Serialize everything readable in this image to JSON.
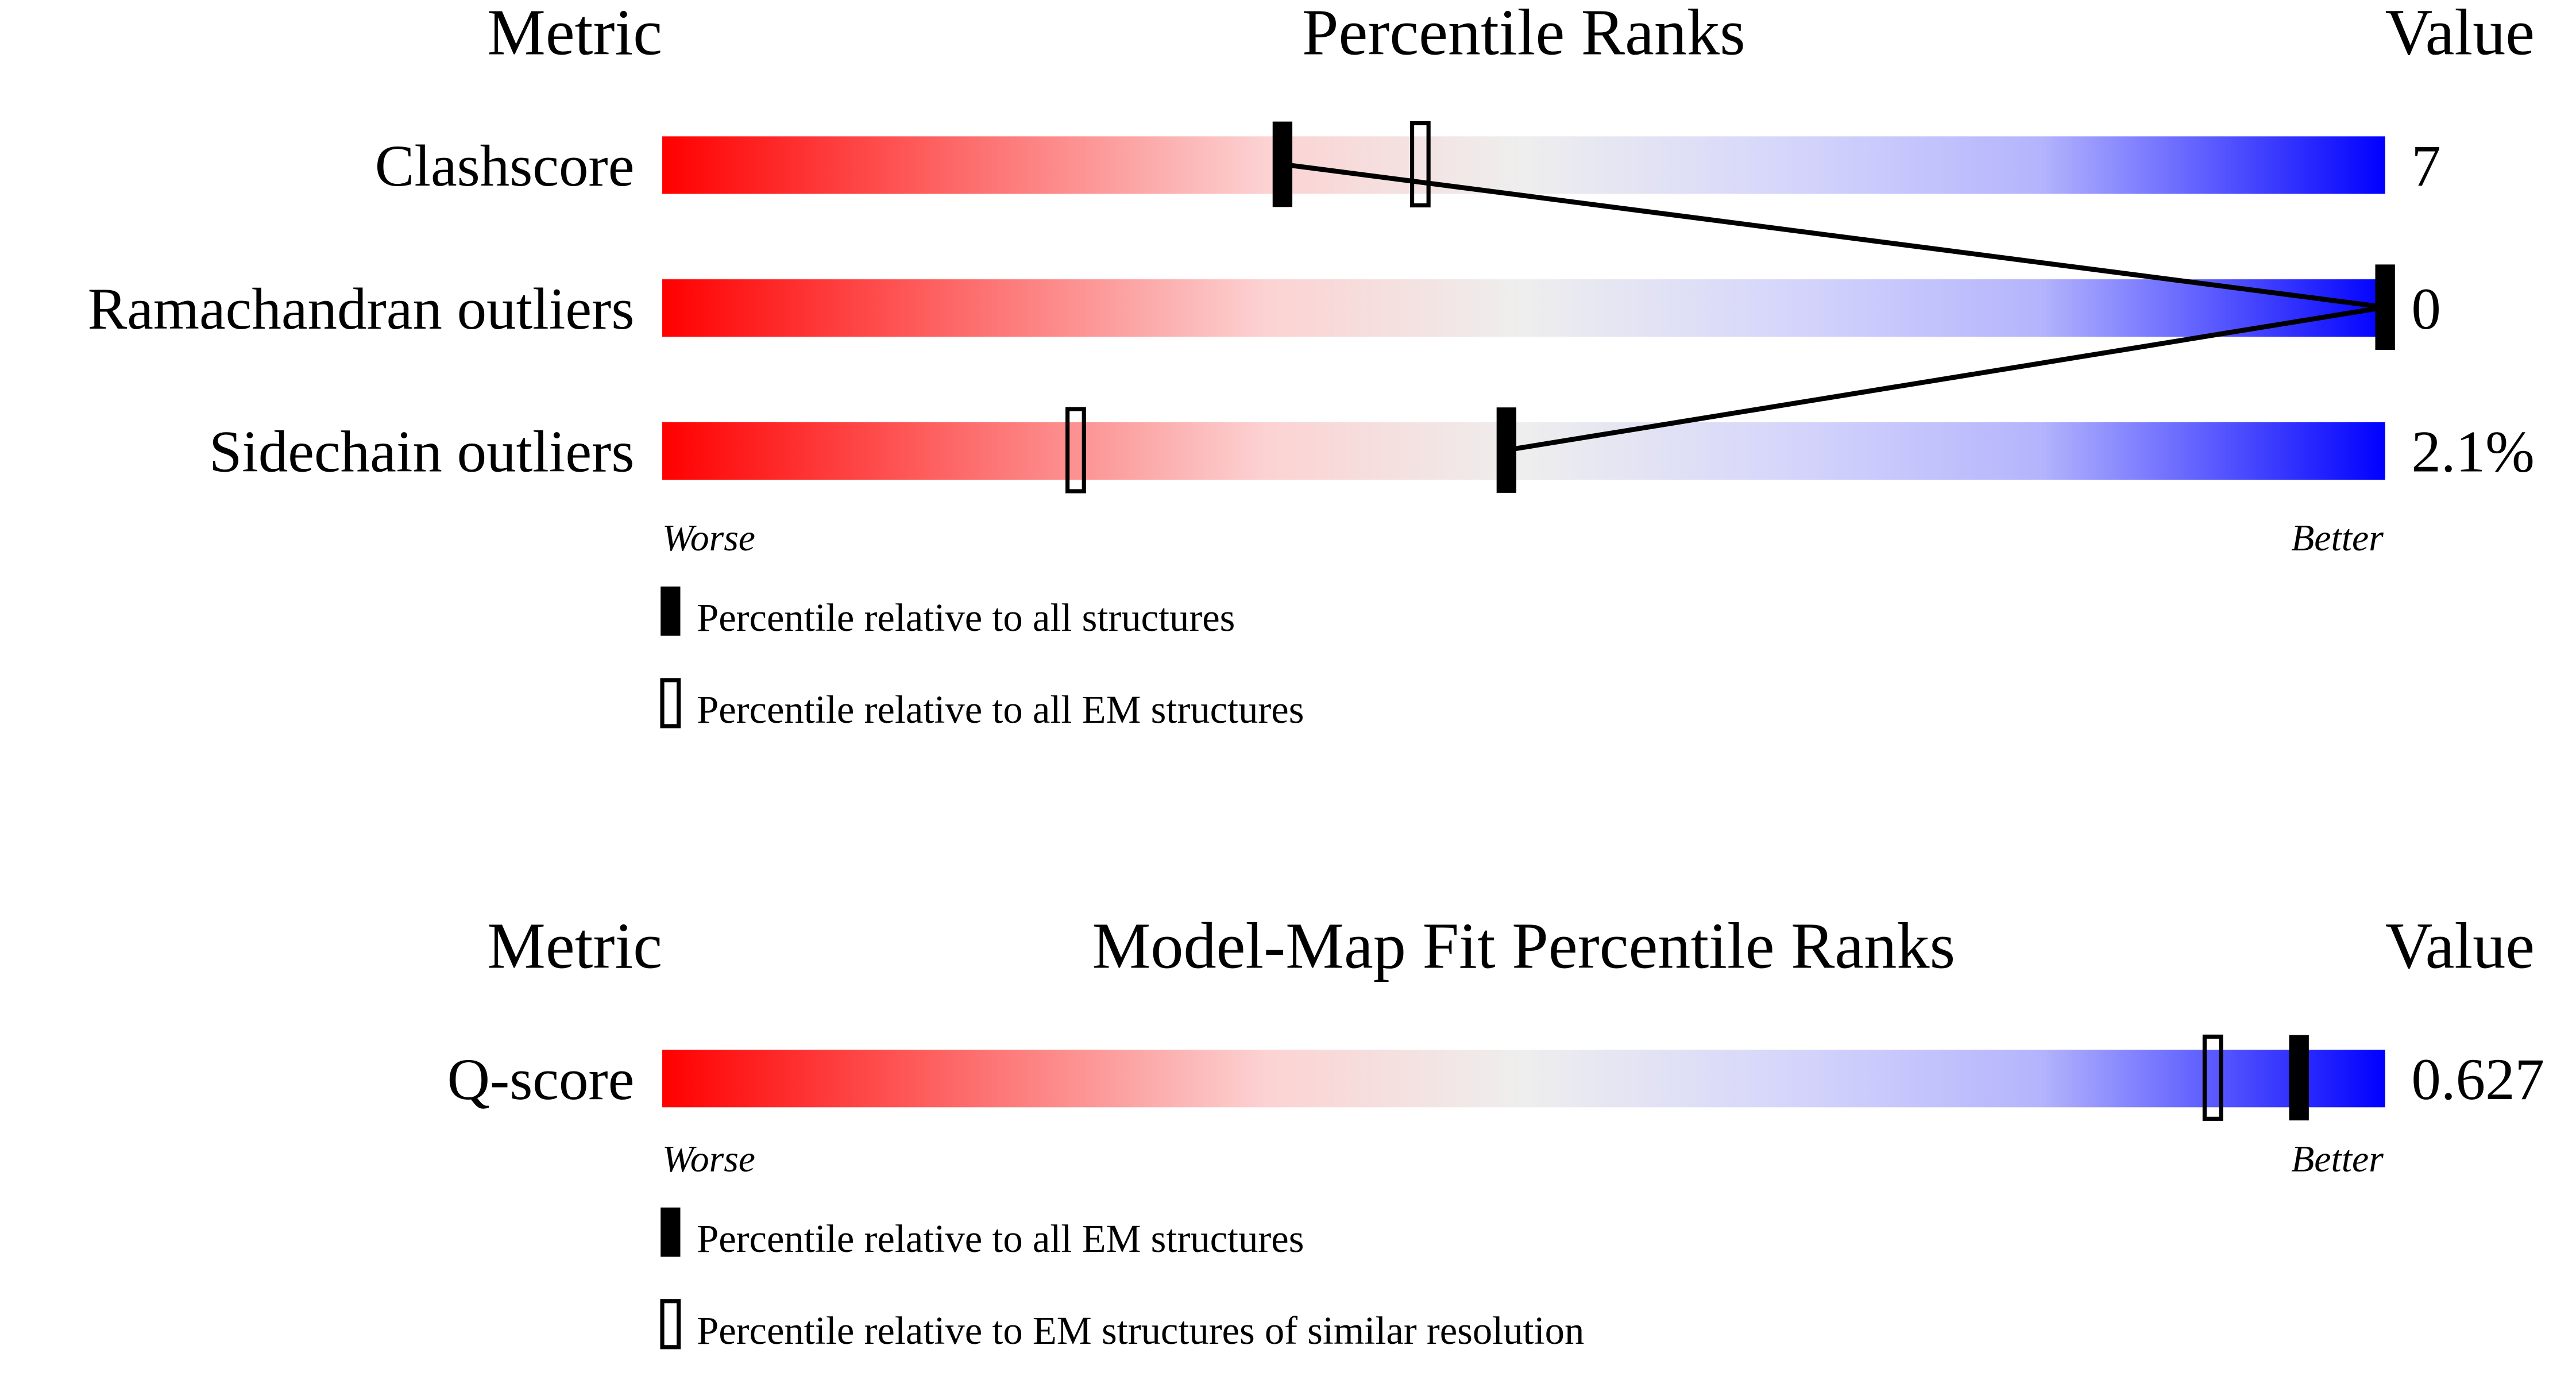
{
  "chart_data": [
    {
      "type": "percentile-slider",
      "headers": {
        "metric": "Metric",
        "title": "Percentile Ranks",
        "value": "Value"
      },
      "xlim": [
        0,
        100
      ],
      "axis_labels": {
        "left": "Worse",
        "right": "Better"
      },
      "metrics": [
        {
          "name": "Clashscore",
          "value": "7",
          "percentile_all": 36,
          "percentile_em": 44
        },
        {
          "name": "Ramachandran outliers",
          "value": "0",
          "percentile_all": 100,
          "percentile_em": null
        },
        {
          "name": "Sidechain outliers",
          "value": "2.1%",
          "percentile_all": 49,
          "percentile_em": 24
        }
      ],
      "legend": [
        {
          "marker": "filled",
          "label": "Percentile relative to all structures"
        },
        {
          "marker": "hollow",
          "label": "Percentile relative to all EM structures"
        }
      ]
    },
    {
      "type": "percentile-slider",
      "headers": {
        "metric": "Metric",
        "title": "Model-Map Fit Percentile Ranks",
        "value": "Value"
      },
      "xlim": [
        0,
        100
      ],
      "axis_labels": {
        "left": "Worse",
        "right": "Better"
      },
      "metrics": [
        {
          "name": "Q-score",
          "value": "0.627",
          "percentile_all": 95,
          "percentile_em": 90
        }
      ],
      "legend": [
        {
          "marker": "filled",
          "label": "Percentile relative to all EM structures"
        },
        {
          "marker": "hollow",
          "label": "Percentile relative to EM structures of similar resolution"
        }
      ]
    }
  ],
  "colors": {
    "worse": "#ff0000",
    "middle": "#eeeeee",
    "better": "#0000ff",
    "marker": "#000000"
  }
}
